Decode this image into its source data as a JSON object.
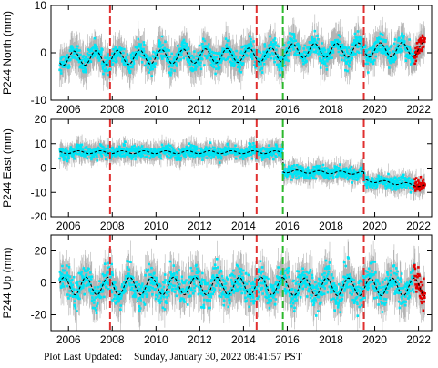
{
  "station": "P244",
  "footer": {
    "label": "Plot Last Updated:",
    "timestamp": "Sunday, January 30, 2022 08:41:57 PST"
  },
  "colors": {
    "data": "#00e5f5",
    "error_bars": "#b4b4b4",
    "model": "#000000",
    "recent": "#e00000",
    "event_red": "#e03030",
    "event_green": "#2db82d"
  },
  "chart_data": [
    {
      "type": "scatter",
      "ylabel": "P244 North (mm)",
      "xlim": [
        2005.2,
        2022.6
      ],
      "ylim": [
        -10,
        10
      ],
      "yticks": [
        -10,
        0,
        10
      ],
      "xticks": [
        2006,
        2008,
        2010,
        2012,
        2014,
        2016,
        2018,
        2020,
        2022
      ],
      "event_lines": [
        {
          "x": 2007.9,
          "color": "red"
        },
        {
          "x": 2014.6,
          "color": "red"
        },
        {
          "x": 2015.8,
          "color": "green"
        },
        {
          "x": 2019.5,
          "color": "red"
        }
      ],
      "model_segments": [
        {
          "x_start": 2005.6,
          "x_end": 2015.8,
          "offset": -1.2,
          "trend": 0.08,
          "annual_amp": 1.5,
          "phase": 0.0
        },
        {
          "x_start": 2015.8,
          "x_end": 2022.3,
          "offset": 0.4,
          "trend": 0.05,
          "annual_amp": 1.5,
          "phase": 0.0
        }
      ],
      "noise": 1.6,
      "error": 2.6,
      "recent_start": 2021.8
    },
    {
      "type": "scatter",
      "ylabel": "P244 East (mm)",
      "xlim": [
        2005.2,
        2022.6
      ],
      "ylim": [
        -20,
        20
      ],
      "yticks": [
        -20,
        -10,
        0,
        10,
        20
      ],
      "xticks": [
        2006,
        2008,
        2010,
        2012,
        2014,
        2016,
        2018,
        2020,
        2022
      ],
      "event_lines": [
        {
          "x": 2007.9,
          "color": "red"
        },
        {
          "x": 2014.6,
          "color": "red"
        },
        {
          "x": 2015.8,
          "color": "green"
        },
        {
          "x": 2019.5,
          "color": "red"
        }
      ],
      "model_segments": [
        {
          "x_start": 2005.6,
          "x_end": 2015.8,
          "offset": 6.5,
          "trend": 0.0,
          "annual_amp": 0.6,
          "phase": 0.2
        },
        {
          "x_start": 2015.8,
          "x_end": 2019.5,
          "offset": -1.3,
          "trend": -0.2,
          "annual_amp": 0.6,
          "phase": 0.2
        },
        {
          "x_start": 2019.5,
          "x_end": 2022.3,
          "offset": -5.0,
          "trend": -0.8,
          "annual_amp": 0.6,
          "phase": 0.2
        }
      ],
      "noise": 1.8,
      "error": 3.0,
      "recent_start": 2021.8
    },
    {
      "type": "scatter",
      "ylabel": "P244 Up (mm)",
      "xlim": [
        2005.2,
        2022.6
      ],
      "ylim": [
        -30,
        30
      ],
      "yticks": [
        -20,
        0,
        20
      ],
      "xticks": [
        2006,
        2008,
        2010,
        2012,
        2014,
        2016,
        2018,
        2020,
        2022
      ],
      "event_lines": [
        {
          "x": 2007.9,
          "color": "red"
        },
        {
          "x": 2014.6,
          "color": "red"
        },
        {
          "x": 2015.8,
          "color": "green"
        },
        {
          "x": 2019.5,
          "color": "red"
        }
      ],
      "model_segments": [
        {
          "x_start": 2005.6,
          "x_end": 2015.8,
          "offset": -2.0,
          "trend": 0.0,
          "annual_amp": 5.5,
          "phase": 0.55
        },
        {
          "x_start": 2015.8,
          "x_end": 2022.3,
          "offset": -2.5,
          "trend": 0.0,
          "annual_amp": 5.5,
          "phase": 0.55
        }
      ],
      "noise": 7.0,
      "error": 9.0,
      "recent_start": 2021.8
    }
  ]
}
